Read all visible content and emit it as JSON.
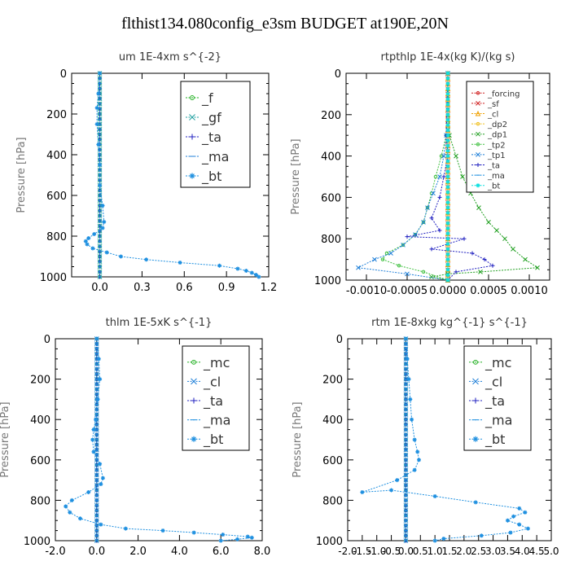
{
  "title": "flthist134.080config_e3sm  BUDGET at190E,20N",
  "chart_data": [
    {
      "type": "line",
      "title": "um   1E-4xm s^{-2}",
      "ylabel": "Pressure [hPa]",
      "xlim": [
        -0.2,
        1.2
      ],
      "ylim": [
        1000,
        0
      ],
      "xticks": [
        "0.0",
        "0.3",
        "0.6",
        "0.9",
        "1.2"
      ],
      "xtick_values": [
        0,
        0.3,
        0.6,
        0.9,
        1.2
      ],
      "yticks": [
        "0",
        "200",
        "400",
        "600",
        "800",
        "1000"
      ],
      "ytick_values": [
        0,
        200,
        400,
        600,
        800,
        1000
      ],
      "series": [
        {
          "name": "_f",
          "color": "#22b022",
          "marker": "circle",
          "x": [
            0.0,
            0.0
          ],
          "y": [
            0,
            1000
          ]
        },
        {
          "name": "_gf",
          "color": "#20a0a0",
          "marker": "x",
          "x": [
            0.0,
            0.0
          ],
          "y": [
            0,
            1000
          ]
        },
        {
          "name": "_ta",
          "color": "#2020c0",
          "marker": "plus",
          "x": [
            0.0,
            0.0,
            0.0
          ],
          "y": [
            0,
            500,
            1000
          ]
        },
        {
          "name": "_ma",
          "color": "#1f7fd8",
          "marker": "dash",
          "x": [
            0.0,
            0.0
          ],
          "y": [
            0,
            1000
          ]
        },
        {
          "name": "_bt",
          "color": "#1f90e0",
          "marker": "star",
          "x": [
            0.0,
            -0.01,
            -0.02,
            -0.02,
            -0.01,
            0.0,
            0.0,
            0.02,
            0.03,
            0.02,
            -0.04,
            -0.08,
            -0.1,
            -0.09,
            -0.05,
            0.05,
            0.15,
            0.33,
            0.57,
            0.85,
            0.98,
            1.04,
            1.08,
            1.11,
            1.13
          ],
          "y": [
            0,
            100,
            170,
            250,
            350,
            450,
            550,
            650,
            730,
            760,
            790,
            810,
            825,
            840,
            860,
            880,
            900,
            915,
            930,
            945,
            960,
            970,
            980,
            990,
            1000
          ]
        }
      ]
    },
    {
      "type": "line",
      "title": "rtpthlp   1E-4x(kg K)/(kg s)",
      "ylabel": "Pressure [hPa]",
      "xlim": [
        -0.00125,
        0.00125
      ],
      "ylim": [
        1000,
        0
      ],
      "xticks": [
        "-0.0010",
        "-0.0005",
        "0.0000",
        "0.0005",
        "0.0010"
      ],
      "xtick_values": [
        -0.001,
        -0.0005,
        0,
        0.0005,
        0.001
      ],
      "yticks": [
        "0",
        "200",
        "400",
        "600",
        "800",
        "1000"
      ],
      "ytick_values": [
        0,
        200,
        400,
        600,
        800,
        1000
      ],
      "series": [
        {
          "name": "_forcing",
          "color": "#d02020",
          "marker": "circle",
          "x": [
            0.0,
            0.0
          ],
          "y": [
            0,
            1000
          ]
        },
        {
          "name": "_sf",
          "color": "#d02020",
          "marker": "x",
          "x": [
            0.0,
            0.0
          ],
          "y": [
            0,
            1000
          ]
        },
        {
          "name": "_cl",
          "color": "#f0a000",
          "marker": "triangle",
          "x": [
            0.0,
            0.0
          ],
          "y": [
            0,
            1000
          ]
        },
        {
          "name": "_dp2",
          "color": "#f0c020",
          "marker": "circle",
          "x": [
            0.0,
            0.0
          ],
          "y": [
            0,
            1000
          ]
        },
        {
          "name": "_dp1",
          "color": "#22a022",
          "marker": "x",
          "x": [
            0.0,
            2e-05,
            0.0001,
            0.00018,
            0.00028,
            0.00038,
            0.0005,
            0.0006,
            0.0007,
            0.0008,
            0.00095,
            0.0011,
            0.0004,
            0.0,
            -0.0002,
            0.0
          ],
          "y": [
            0,
            300,
            400,
            500,
            580,
            650,
            720,
            760,
            800,
            850,
            900,
            940,
            960,
            970,
            985,
            1000
          ]
        },
        {
          "name": "_tp2",
          "color": "#40c040",
          "marker": "circle",
          "x": [
            0.0,
            -2e-05,
            -8e-05,
            -0.00015,
            -0.0002,
            -0.00025,
            -0.0003,
            -0.0004,
            -0.00055,
            -0.00075,
            -0.0008,
            -0.0006,
            -0.0003,
            0.0
          ],
          "y": [
            0,
            300,
            400,
            500,
            580,
            650,
            720,
            780,
            830,
            870,
            900,
            930,
            960,
            1000
          ]
        },
        {
          "name": "_tp1",
          "color": "#1f7fd8",
          "marker": "x",
          "x": [
            0.0,
            -2e-05,
            -5e-05,
            -0.0001,
            -0.00018,
            -0.00025,
            -0.0003,
            -0.0004,
            -0.00055,
            -0.0007,
            -0.0009,
            -0.0011,
            -0.0005,
            0.0
          ],
          "y": [
            0,
            300,
            400,
            500,
            580,
            650,
            720,
            780,
            830,
            870,
            900,
            940,
            970,
            1000
          ]
        },
        {
          "name": "_ta",
          "color": "#2020c0",
          "marker": "plus",
          "x": [
            0.0,
            -2e-05,
            0.0,
            -5e-05,
            -0.0001,
            -0.0002,
            -0.0001,
            -0.0005,
            0.0002,
            -0.0002,
            0.0003,
            0.00045,
            0.00055,
            0.0001,
            0.0
          ],
          "y": [
            0,
            300,
            400,
            500,
            600,
            700,
            760,
            790,
            800,
            850,
            870,
            900,
            930,
            960,
            1000
          ]
        },
        {
          "name": "_ma",
          "color": "#1f90e0",
          "marker": "dash",
          "x": [
            0.0,
            0.0
          ],
          "y": [
            0,
            1000
          ]
        },
        {
          "name": "_bt",
          "color": "#10e0e0",
          "marker": "star",
          "x": [
            0.0,
            0.0
          ],
          "y": [
            0,
            1000
          ]
        }
      ]
    },
    {
      "type": "line",
      "title": "thlm   1E-5xK s^{-1}",
      "ylabel": "Pressure [hPa]",
      "xlim": [
        -2.0,
        8.0
      ],
      "ylim": [
        1000,
        0
      ],
      "xticks": [
        "-2.0",
        "0.0",
        "2.0",
        "4.0",
        "6.0",
        "8.0"
      ],
      "xtick_values": [
        -2,
        0,
        2,
        4,
        6,
        8
      ],
      "yticks": [
        "0",
        "200",
        "400",
        "600",
        "800",
        "1000"
      ],
      "ytick_values": [
        0,
        200,
        400,
        600,
        800,
        1000
      ],
      "series": [
        {
          "name": "_mc",
          "color": "#22b022",
          "marker": "circle",
          "x": [
            0.0,
            0.0
          ],
          "y": [
            0,
            1000
          ]
        },
        {
          "name": "_cl",
          "color": "#1f7fd8",
          "marker": "x",
          "x": [
            0.0,
            0.0
          ],
          "y": [
            0,
            1000
          ]
        },
        {
          "name": "_ta",
          "color": "#2020c0",
          "marker": "plus",
          "x": [
            0.0,
            0.0
          ],
          "y": [
            0,
            1000
          ]
        },
        {
          "name": "_ma",
          "color": "#1f90e0",
          "marker": "dash",
          "x": [
            0.0,
            0.0
          ],
          "y": [
            0,
            1000
          ]
        },
        {
          "name": "_bt",
          "color": "#1f90e0",
          "marker": "star",
          "x": [
            0.0,
            0.1,
            0.15,
            0.05,
            -0.05,
            -0.15,
            -0.2,
            -0.15,
            0.15,
            0.3,
            0.2,
            -0.4,
            -1.2,
            -1.5,
            -1.3,
            -0.8,
            0.2,
            1.4,
            3.2,
            4.7,
            6.1,
            7.3,
            7.5,
            6.8,
            6.0
          ],
          "y": [
            0,
            100,
            200,
            300,
            400,
            450,
            500,
            560,
            620,
            690,
            720,
            760,
            800,
            830,
            860,
            890,
            920,
            940,
            950,
            960,
            970,
            980,
            985,
            993,
            1000
          ]
        }
      ]
    },
    {
      "type": "line",
      "title": "rtm   1E-8xkg kg^{-1} s^{-1}",
      "ylabel": "Pressure [hPa]",
      "xlim": [
        -2.0,
        5.0
      ],
      "ylim": [
        1000,
        0
      ],
      "xticks": [
        "-2.0",
        "-1.5",
        "-1.0",
        "-0.5",
        "0.0",
        "0.5",
        "1.0",
        "1.5",
        "2.0",
        "2.5",
        "3.0",
        "3.5",
        "4.0",
        "4.5",
        "5.0"
      ],
      "xtick_values": [
        -2,
        -1.5,
        -1,
        -0.5,
        0,
        0.5,
        1,
        1.5,
        2,
        2.5,
        3,
        3.5,
        4,
        4.5,
        5
      ],
      "yticks": [
        "0",
        "200",
        "400",
        "600",
        "800",
        "1000"
      ],
      "ytick_values": [
        0,
        200,
        400,
        600,
        800,
        1000
      ],
      "series": [
        {
          "name": "_mc",
          "color": "#22b022",
          "marker": "circle",
          "x": [
            0.0,
            0.0
          ],
          "y": [
            0,
            1000
          ]
        },
        {
          "name": "_cl",
          "color": "#1f7fd8",
          "marker": "x",
          "x": [
            0.0,
            0.0
          ],
          "y": [
            0,
            1000
          ]
        },
        {
          "name": "_ta",
          "color": "#2020c0",
          "marker": "plus",
          "x": [
            0.0,
            0.0
          ],
          "y": [
            0,
            1000
          ]
        },
        {
          "name": "_ma",
          "color": "#1f90e0",
          "marker": "dash",
          "x": [
            0.0,
            0.0
          ],
          "y": [
            0,
            1000
          ]
        },
        {
          "name": "_bt",
          "color": "#1f90e0",
          "marker": "star",
          "x": [
            0.0,
            0.05,
            0.1,
            0.15,
            0.2,
            0.3,
            0.4,
            0.45,
            0.3,
            -0.3,
            -1.5,
            -0.5,
            1.0,
            2.4,
            3.9,
            4.1,
            3.7,
            3.5,
            3.9,
            4.2,
            3.6,
            2.6,
            1.3,
            1.0
          ],
          "y": [
            0,
            100,
            200,
            300,
            400,
            500,
            560,
            600,
            650,
            700,
            760,
            750,
            780,
            810,
            840,
            860,
            880,
            900,
            920,
            940,
            960,
            975,
            990,
            1000
          ]
        }
      ]
    }
  ]
}
